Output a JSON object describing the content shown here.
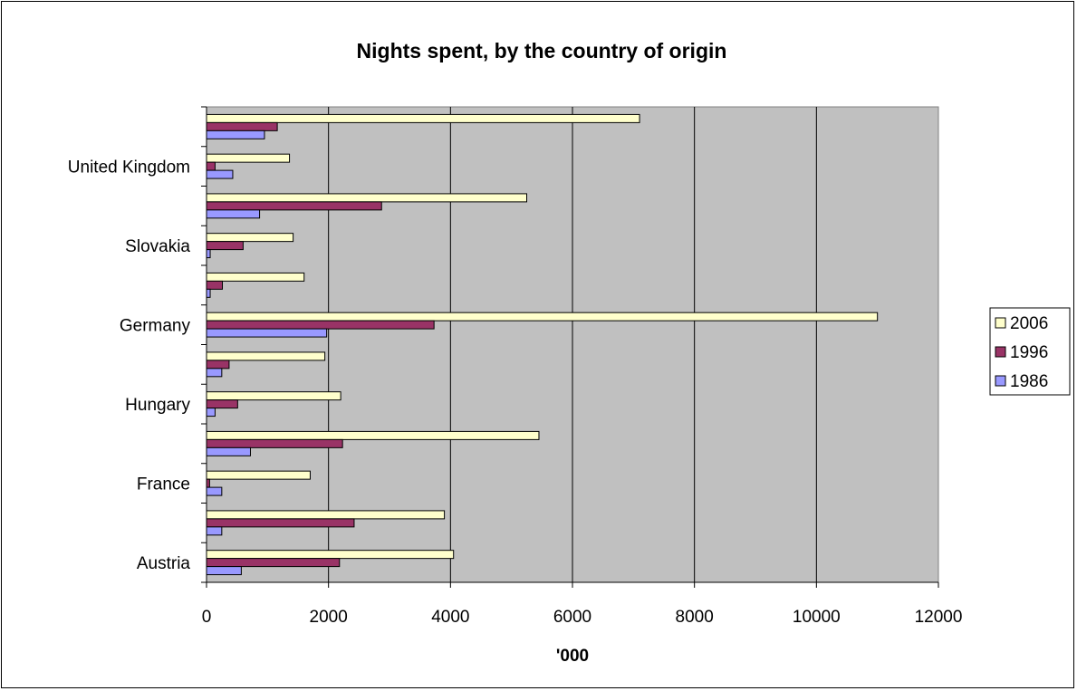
{
  "chart_data": {
    "type": "bar",
    "orientation": "horizontal",
    "title": "Nights spent, by the country of origin",
    "xlabel": "'000",
    "ylabel": "",
    "xlim": [
      0,
      12000
    ],
    "xticks": [
      0,
      2000,
      4000,
      6000,
      8000,
      10000,
      12000
    ],
    "categories": [
      "Austria",
      "",
      "France",
      "",
      "Hungary",
      "",
      "Germany",
      "",
      "Slovakia",
      "",
      "United Kingdom",
      ""
    ],
    "series": [
      {
        "name": "2006",
        "color": "#FFFFCC",
        "values": [
          4050,
          3900,
          1700,
          5450,
          2200,
          1940,
          11000,
          1600,
          1420,
          5250,
          1360,
          7100
        ]
      },
      {
        "name": "1996",
        "color": "#993366",
        "values": [
          2180,
          2420,
          50,
          2230,
          510,
          370,
          3730,
          260,
          600,
          2870,
          140,
          1160
        ]
      },
      {
        "name": "1986",
        "color": "#9999FF",
        "values": [
          570,
          250,
          250,
          720,
          140,
          250,
          1970,
          60,
          60,
          870,
          430,
          950
        ]
      }
    ],
    "legend_position": "right",
    "grid": true,
    "plot_background": "#C0C0C0"
  }
}
